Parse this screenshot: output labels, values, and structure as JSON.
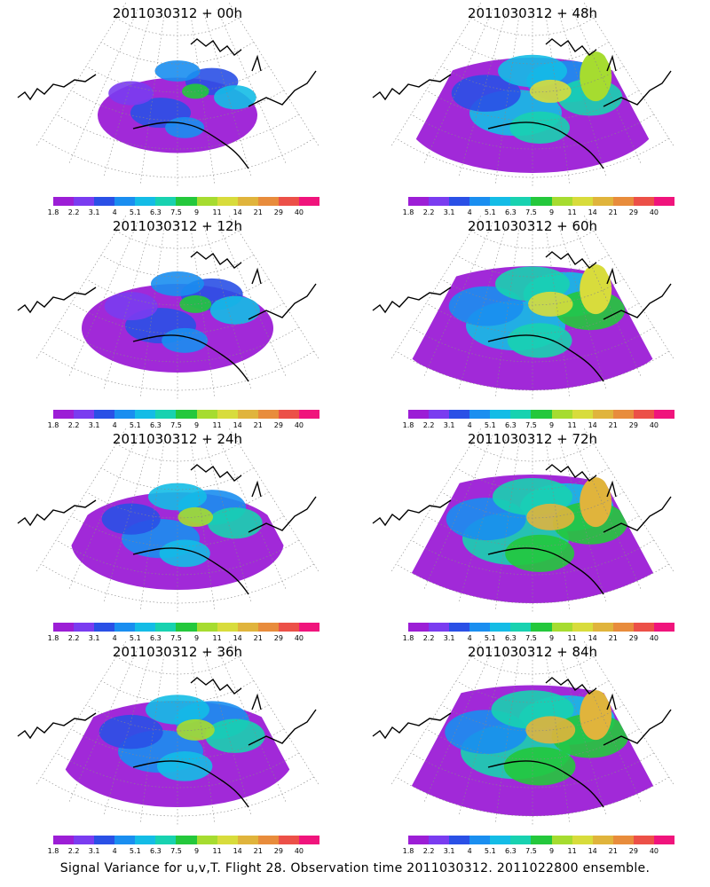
{
  "caption": "Signal Variance for u,v,T. Flight 28. Observation time 2011030312. 2011022800 ensemble.",
  "colorbar": {
    "labels": [
      "1.8",
      "2.2",
      "3.1",
      "4",
      "5.1",
      "6.3",
      "7.5",
      "9",
      "11",
      "14",
      "21",
      "29",
      "40"
    ],
    "colors": [
      "#9c1ed6",
      "#7a3cf0",
      "#2a50e6",
      "#1a8ef0",
      "#14bce6",
      "#18d2b0",
      "#24c83c",
      "#a6dc30",
      "#d8dc3c",
      "#e0b43c",
      "#e88c3c",
      "#ec5048",
      "#f0147c"
    ]
  },
  "chart_data": [
    {
      "type": "heatmap",
      "title": "2011030312 + 00h",
      "lead_hours": 0,
      "intensity": 0.25
    },
    {
      "type": "heatmap",
      "title": "2011030312 + 48h",
      "lead_hours": 48,
      "intensity": 0.7
    },
    {
      "type": "heatmap",
      "title": "2011030312 + 12h",
      "lead_hours": 12,
      "intensity": 0.4
    },
    {
      "type": "heatmap",
      "title": "2011030312 + 60h",
      "lead_hours": 60,
      "intensity": 0.8
    },
    {
      "type": "heatmap",
      "title": "2011030312 + 24h",
      "lead_hours": 24,
      "intensity": 0.5
    },
    {
      "type": "heatmap",
      "title": "2011030312 + 72h",
      "lead_hours": 72,
      "intensity": 0.9
    },
    {
      "type": "heatmap",
      "title": "2011030312 + 36h",
      "lead_hours": 36,
      "intensity": 0.6
    },
    {
      "type": "heatmap",
      "title": "2011030312 + 84h",
      "lead_hours": 84,
      "intensity": 0.95
    }
  ]
}
